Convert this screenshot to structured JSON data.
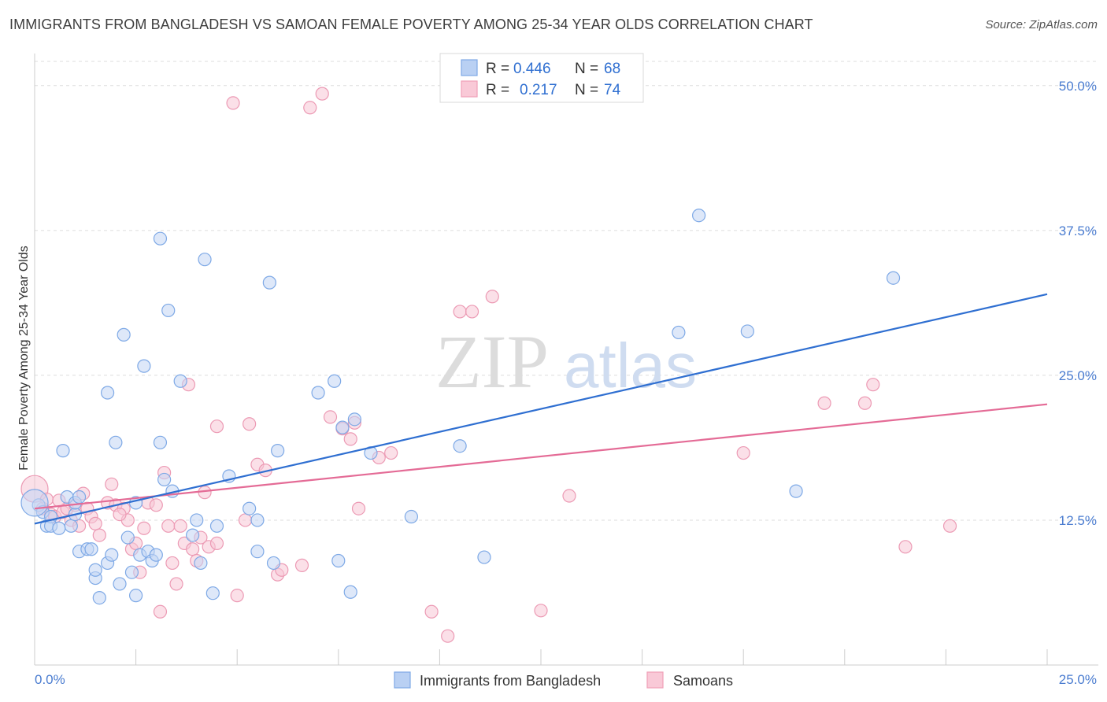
{
  "title": "IMMIGRANTS FROM BANGLADESH VS SAMOAN FEMALE POVERTY AMONG 25-34 YEAR OLDS CORRELATION CHART",
  "source": "Source: ZipAtlas.com",
  "watermark": {
    "zip": "ZIP",
    "atlas": "atlas"
  },
  "legend": {
    "r_label": "R =",
    "n_label": "N =",
    "rows": [
      {
        "r": "0.446",
        "n": "68",
        "color": "#7ea9e6",
        "fill": "#b9d0f3"
      },
      {
        "r": "0.217",
        "n": "74",
        "color": "#f0a0b8",
        "fill": "#f9c9d7"
      }
    ]
  },
  "bottom_legend": [
    "Immigrants from Bangladesh",
    "Samoans"
  ],
  "chart_data": {
    "type": "scatter",
    "title": "IMMIGRANTS FROM BANGLADESH VS SAMOAN FEMALE POVERTY AMONG 25-34 YEAR OLDS CORRELATION CHART",
    "xlabel": "",
    "ylabel": "Female Poverty Among 25-34 Year Olds",
    "xlim": [
      0,
      25
    ],
    "ylim": [
      0,
      52.5
    ],
    "x_tick_labels": [
      "0.0%",
      "25.0%"
    ],
    "y_ticks": [
      12.5,
      25.0,
      37.5,
      50.0
    ],
    "y_tick_labels": [
      "12.5%",
      "25.0%",
      "37.5%",
      "50.0%"
    ],
    "grid": true,
    "legend_position": "top-center",
    "colors": {
      "blue": "#2f6fd1",
      "pink": "#e46b96"
    },
    "series": [
      {
        "name": "Immigrants from Bangladesh",
        "r": 0.446,
        "n": 68,
        "trend": {
          "x": [
            0,
            25
          ],
          "y": [
            12.2,
            32.0
          ]
        },
        "points": [
          [
            0.1,
            13.8
          ],
          [
            0.2,
            13.2
          ],
          [
            0.3,
            12.0
          ],
          [
            0.4,
            12.8
          ],
          [
            0.4,
            12.0
          ],
          [
            0.6,
            11.8
          ],
          [
            0.7,
            18.5
          ],
          [
            0.8,
            14.5
          ],
          [
            0.9,
            12.0
          ],
          [
            1.0,
            13.0
          ],
          [
            1.0,
            14.0
          ],
          [
            1.1,
            14.5
          ],
          [
            1.1,
            9.8
          ],
          [
            1.3,
            10.0
          ],
          [
            1.4,
            10.0
          ],
          [
            1.5,
            7.5
          ],
          [
            1.5,
            8.2
          ],
          [
            1.6,
            5.8
          ],
          [
            1.8,
            8.8
          ],
          [
            1.8,
            23.5
          ],
          [
            1.9,
            9.5
          ],
          [
            2.0,
            19.2
          ],
          [
            2.1,
            7.0
          ],
          [
            2.2,
            28.5
          ],
          [
            2.3,
            11.0
          ],
          [
            2.4,
            8.0
          ],
          [
            2.5,
            6.0
          ],
          [
            2.5,
            14.0
          ],
          [
            2.6,
            9.5
          ],
          [
            2.7,
            25.8
          ],
          [
            2.8,
            9.8
          ],
          [
            2.9,
            9.0
          ],
          [
            3.0,
            9.5
          ],
          [
            3.1,
            36.8
          ],
          [
            3.1,
            19.2
          ],
          [
            3.2,
            16.0
          ],
          [
            3.3,
            30.6
          ],
          [
            3.4,
            15.0
          ],
          [
            3.6,
            24.5
          ],
          [
            3.9,
            11.2
          ],
          [
            4.0,
            12.5
          ],
          [
            4.1,
            8.8
          ],
          [
            4.2,
            35.0
          ],
          [
            4.4,
            6.2
          ],
          [
            4.5,
            12.0
          ],
          [
            4.8,
            16.3
          ],
          [
            5.3,
            13.5
          ],
          [
            5.5,
            12.5
          ],
          [
            5.5,
            9.8
          ],
          [
            5.8,
            33.0
          ],
          [
            5.9,
            8.8
          ],
          [
            6.0,
            18.5
          ],
          [
            7.0,
            23.5
          ],
          [
            7.4,
            24.5
          ],
          [
            7.5,
            9.0
          ],
          [
            7.6,
            20.5
          ],
          [
            7.8,
            6.3
          ],
          [
            7.9,
            21.2
          ],
          [
            8.3,
            18.3
          ],
          [
            9.3,
            12.8
          ],
          [
            10.5,
            18.9
          ],
          [
            11.1,
            9.3
          ],
          [
            15.9,
            28.7
          ],
          [
            16.4,
            38.8
          ],
          [
            17.6,
            28.8
          ],
          [
            18.8,
            15.0
          ],
          [
            21.2,
            33.4
          ],
          [
            0.0,
            14.0
          ]
        ]
      },
      {
        "name": "Samoans",
        "r": 0.217,
        "n": 74,
        "trend": {
          "x": [
            0,
            25
          ],
          "y": [
            13.5,
            22.5
          ]
        },
        "points": [
          [
            0.0,
            15.2
          ],
          [
            0.2,
            13.5
          ],
          [
            0.4,
            13.0
          ],
          [
            0.5,
            12.8
          ],
          [
            0.7,
            13.2
          ],
          [
            0.8,
            13.5
          ],
          [
            0.9,
            12.5
          ],
          [
            1.0,
            13.8
          ],
          [
            1.1,
            12.0
          ],
          [
            1.2,
            14.8
          ],
          [
            1.3,
            13.5
          ],
          [
            1.4,
            12.8
          ],
          [
            1.5,
            12.2
          ],
          [
            1.6,
            11.2
          ],
          [
            1.8,
            14.0
          ],
          [
            1.9,
            15.6
          ],
          [
            2.0,
            13.8
          ],
          [
            2.2,
            13.5
          ],
          [
            2.3,
            12.5
          ],
          [
            2.4,
            10.0
          ],
          [
            2.5,
            10.5
          ],
          [
            2.6,
            8.0
          ],
          [
            2.7,
            11.8
          ],
          [
            2.8,
            14.0
          ],
          [
            3.0,
            13.8
          ],
          [
            3.1,
            4.6
          ],
          [
            3.2,
            16.6
          ],
          [
            3.3,
            12.0
          ],
          [
            3.4,
            8.8
          ],
          [
            3.5,
            7.0
          ],
          [
            3.6,
            12.0
          ],
          [
            3.7,
            10.5
          ],
          [
            3.8,
            24.2
          ],
          [
            3.9,
            10.0
          ],
          [
            4.0,
            9.0
          ],
          [
            4.1,
            11.0
          ],
          [
            4.2,
            14.9
          ],
          [
            4.3,
            10.2
          ],
          [
            4.5,
            10.5
          ],
          [
            4.5,
            20.6
          ],
          [
            4.9,
            48.5
          ],
          [
            5.0,
            6.0
          ],
          [
            5.2,
            12.5
          ],
          [
            5.3,
            20.8
          ],
          [
            5.5,
            17.3
          ],
          [
            5.7,
            16.8
          ],
          [
            6.0,
            7.8
          ],
          [
            6.1,
            8.2
          ],
          [
            6.6,
            8.6
          ],
          [
            6.8,
            48.1
          ],
          [
            7.1,
            49.3
          ],
          [
            7.3,
            21.4
          ],
          [
            7.6,
            20.4
          ],
          [
            7.8,
            19.5
          ],
          [
            7.9,
            20.9
          ],
          [
            8.0,
            13.5
          ],
          [
            8.5,
            17.9
          ],
          [
            8.8,
            18.3
          ],
          [
            9.8,
            4.6
          ],
          [
            10.2,
            2.5
          ],
          [
            10.5,
            30.5
          ],
          [
            10.8,
            30.5
          ],
          [
            11.3,
            31.8
          ],
          [
            12.5,
            4.7
          ],
          [
            13.2,
            14.6
          ],
          [
            17.5,
            18.3
          ],
          [
            19.5,
            22.6
          ],
          [
            20.5,
            22.6
          ],
          [
            20.7,
            24.2
          ],
          [
            21.5,
            10.2
          ],
          [
            22.6,
            12.0
          ],
          [
            0.3,
            14.3
          ],
          [
            0.6,
            14.2
          ],
          [
            2.1,
            13.0
          ]
        ]
      }
    ]
  }
}
